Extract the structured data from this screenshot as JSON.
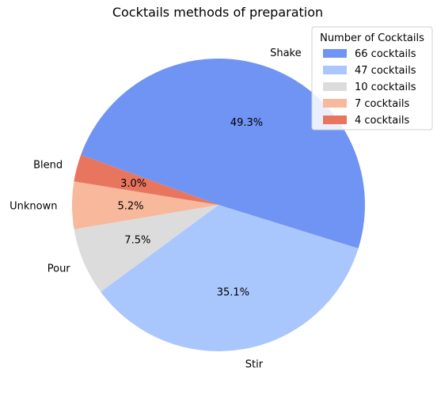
{
  "chart_data": {
    "type": "pie",
    "title": "Cocktails methods of preparation",
    "categories": [
      "Shake",
      "Stir",
      "Pour",
      "Unknown",
      "Blend"
    ],
    "values": [
      66,
      47,
      10,
      7,
      4
    ],
    "percent_labels": [
      "49.3%",
      "35.1%",
      "7.5%",
      "5.2%",
      "3.0%"
    ],
    "colors": [
      "#7094f3",
      "#aac7fd",
      "#dcdcdc",
      "#f7b89c",
      "#e8765e"
    ],
    "legend": {
      "title": "Number of Cocktails",
      "position": "top-right",
      "entries": [
        "66 cocktails",
        "47 cocktails",
        "10 cocktails",
        "7 cocktails",
        "4 cocktails"
      ]
    }
  }
}
